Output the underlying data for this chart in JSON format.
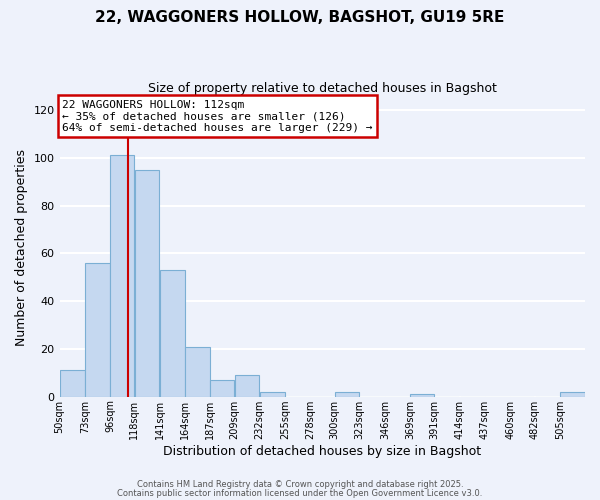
{
  "title1": "22, WAGGONERS HOLLOW, BAGSHOT, GU19 5RE",
  "title2": "Size of property relative to detached houses in Bagshot",
  "xlabel": "Distribution of detached houses by size in Bagshot",
  "ylabel": "Number of detached properties",
  "categories": [
    "50sqm",
    "73sqm",
    "96sqm",
    "118sqm",
    "141sqm",
    "164sqm",
    "187sqm",
    "209sqm",
    "232sqm",
    "255sqm",
    "278sqm",
    "300sqm",
    "323sqm",
    "346sqm",
    "369sqm",
    "391sqm",
    "414sqm",
    "437sqm",
    "460sqm",
    "482sqm",
    "505sqm"
  ],
  "values": [
    11,
    56,
    101,
    95,
    53,
    21,
    7,
    9,
    2,
    0,
    0,
    2,
    0,
    0,
    1,
    0,
    0,
    0,
    0,
    0,
    2
  ],
  "bar_color": "#c5d8f0",
  "bar_edge_color": "#7bafd4",
  "ylim": [
    0,
    125
  ],
  "yticks": [
    0,
    20,
    40,
    60,
    80,
    100,
    120
  ],
  "property_line_x": 112,
  "bin_edges": [
    50,
    73,
    96,
    118,
    141,
    164,
    187,
    209,
    232,
    255,
    278,
    300,
    323,
    346,
    369,
    391,
    414,
    437,
    460,
    482,
    505,
    528
  ],
  "annotation_line1": "22 WAGGONERS HOLLOW: 112sqm",
  "annotation_line2": "← 35% of detached houses are smaller (126)",
  "annotation_line3": "64% of semi-detached houses are larger (229) →",
  "annotation_box_color": "#ffffff",
  "annotation_box_edge": "#cc0000",
  "property_marker_color": "#cc0000",
  "footer1": "Contains HM Land Registry data © Crown copyright and database right 2025.",
  "footer2": "Contains public sector information licensed under the Open Government Licence v3.0.",
  "background_color": "#eef2fb",
  "grid_color": "#dde5f5"
}
